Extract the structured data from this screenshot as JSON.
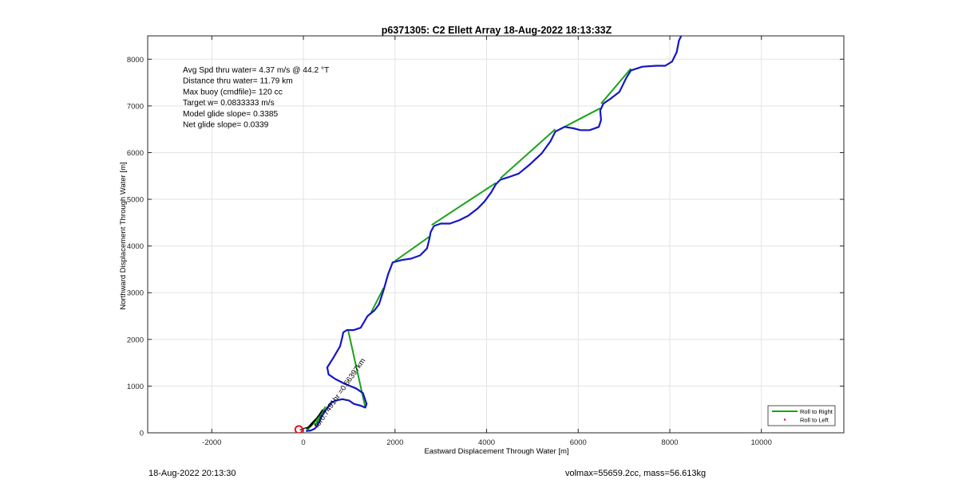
{
  "chart_data": {
    "type": "line",
    "title": "p6371305: C2 Ellett Array 18-Aug-2022 18:13:33Z",
    "xlabel": "Eastward Displacement Through Water [m]",
    "ylabel": "Northward Displacement Through Water [m]",
    "xlim": [
      -3400,
      11800
    ],
    "ylim": [
      0,
      8500
    ],
    "xticks": [
      -2000,
      0,
      2000,
      4000,
      6000,
      8000,
      10000
    ],
    "yticks": [
      0,
      1000,
      2000,
      3000,
      4000,
      5000,
      6000,
      7000,
      8000
    ],
    "grid": true,
    "legend_position": "bottom-right",
    "stats": [
      "Avg Spd thru water=  4.37 m/s @  44.2 °T",
      "Distance thru water= 11.79 km",
      "Max buoy (cmdfile)= 120 cc",
      "Target w= 0.0833333 m/s",
      "Model glide slope= 0.3385",
      "Net glide slope= 0.0339"
    ],
    "annotation": {
      "text": "for0.7491hr =0.66397km",
      "x": 320,
      "y": 100,
      "angle_deg": -55
    },
    "start_marker": {
      "x": -100,
      "y": 70,
      "color": "#e8141b"
    },
    "series": [
      {
        "name": "Roll to Right",
        "color": "#1aa31a",
        "segments": [
          [
            [
              80,
              50
            ],
            [
              650,
              680
            ]
          ],
          [
            [
              250,
              150
            ],
            [
              480,
              560
            ]
          ],
          [
            [
              1350,
              550
            ],
            [
              980,
              2180
            ]
          ],
          [
            [
              1480,
              2580
            ],
            [
              1750,
              3100
            ]
          ],
          [
            [
              2000,
              3680
            ],
            [
              2750,
              4200
            ]
          ],
          [
            [
              2800,
              4450
            ],
            [
              4200,
              5350
            ]
          ],
          [
            [
              4300,
              5450
            ],
            [
              5500,
              6500
            ]
          ],
          [
            [
              5600,
              6500
            ],
            [
              6480,
              6950
            ]
          ],
          [
            [
              6500,
              7050
            ],
            [
              7150,
              7800
            ]
          ]
        ]
      },
      {
        "name": "Roll to Left",
        "color": "#e8141b"
      }
    ],
    "track": {
      "color": "#1515c8",
      "points": [
        [
          70,
          40
        ],
        [
          160,
          50
        ],
        [
          250,
          90
        ],
        [
          300,
          150
        ],
        [
          330,
          200
        ],
        [
          400,
          350
        ],
        [
          500,
          500
        ],
        [
          600,
          640
        ],
        [
          700,
          690
        ],
        [
          850,
          720
        ],
        [
          1000,
          690
        ],
        [
          1100,
          620
        ],
        [
          1250,
          580
        ],
        [
          1350,
          540
        ],
        [
          1380,
          620
        ],
        [
          1300,
          850
        ],
        [
          1150,
          950
        ],
        [
          900,
          1050
        ],
        [
          700,
          1150
        ],
        [
          550,
          1250
        ],
        [
          520,
          1400
        ],
        [
          650,
          1600
        ],
        [
          800,
          1850
        ],
        [
          850,
          2050
        ],
        [
          870,
          2150
        ],
        [
          950,
          2200
        ],
        [
          1100,
          2200
        ],
        [
          1250,
          2250
        ],
        [
          1400,
          2500
        ],
        [
          1550,
          2620
        ],
        [
          1650,
          2750
        ],
        [
          1750,
          3050
        ],
        [
          1850,
          3400
        ],
        [
          1950,
          3650
        ],
        [
          2150,
          3700
        ],
        [
          2350,
          3730
        ],
        [
          2550,
          3800
        ],
        [
          2700,
          3950
        ],
        [
          2750,
          4150
        ],
        [
          2780,
          4300
        ],
        [
          2850,
          4430
        ],
        [
          3000,
          4480
        ],
        [
          3200,
          4480
        ],
        [
          3400,
          4550
        ],
        [
          3600,
          4650
        ],
        [
          3800,
          4800
        ],
        [
          3950,
          4950
        ],
        [
          4100,
          5150
        ],
        [
          4200,
          5320
        ],
        [
          4300,
          5420
        ],
        [
          4500,
          5480
        ],
        [
          4700,
          5550
        ],
        [
          4950,
          5750
        ],
        [
          5200,
          5980
        ],
        [
          5400,
          6250
        ],
        [
          5500,
          6450
        ],
        [
          5700,
          6550
        ],
        [
          5900,
          6520
        ],
        [
          6050,
          6480
        ],
        [
          6250,
          6480
        ],
        [
          6450,
          6550
        ],
        [
          6500,
          6700
        ],
        [
          6480,
          6900
        ],
        [
          6550,
          7050
        ],
        [
          6700,
          7150
        ],
        [
          6900,
          7300
        ],
        [
          7050,
          7600
        ],
        [
          7150,
          7760
        ],
        [
          7400,
          7840
        ],
        [
          7700,
          7860
        ],
        [
          7900,
          7860
        ],
        [
          8050,
          7950
        ],
        [
          8150,
          8150
        ],
        [
          8200,
          8400
        ],
        [
          8250,
          8500
        ]
      ]
    },
    "start_cluster": [
      [
        -80,
        60
      ],
      [
        0,
        90
      ],
      [
        100,
        120
      ],
      [
        200,
        230
      ],
      [
        300,
        330
      ],
      [
        380,
        420
      ],
      [
        420,
        500
      ],
      [
        350,
        400
      ],
      [
        250,
        260
      ],
      [
        180,
        160
      ],
      [
        120,
        120
      ],
      [
        60,
        80
      ],
      [
        140,
        130
      ],
      [
        240,
        250
      ],
      [
        320,
        360
      ]
    ]
  },
  "footer": {
    "timestamp": "18-Aug-2022 20:13:30",
    "info": "volmax=55659.2cc, mass=56.613kg"
  }
}
